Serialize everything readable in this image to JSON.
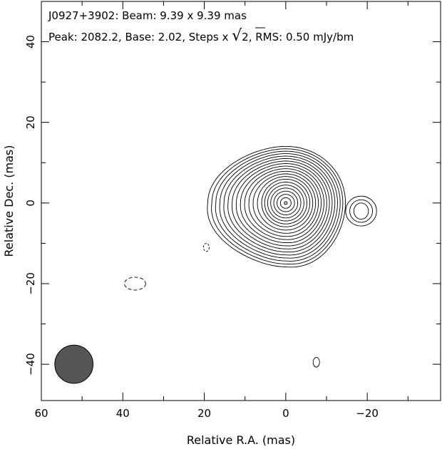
{
  "chart_data": {
    "type": "contour",
    "title_line1": "J0927+3902: Beam: 9.39 x 9.39 mas",
    "title_line2_prefix": "Peak: 2082.2, Base: 2.02, Steps x ",
    "title_line2_sqrt": "2",
    "title_line2_suffix": ", RMS: 0.50 mJy/bm",
    "xlabel": "Relative R.A. (mas)",
    "ylabel": "Relative Dec. (mas)",
    "xlim": [
      60,
      -38
    ],
    "ylim": [
      -49,
      50
    ],
    "x_ticks": [
      60,
      40,
      20,
      0,
      -20
    ],
    "y_ticks": [
      -40,
      -20,
      0,
      20,
      40
    ],
    "x_minor_step": 10,
    "y_minor_step": 10,
    "peak": 2082.2,
    "base": 2.02,
    "step_factor": "sqrt(2)",
    "rms": 0.5,
    "source": {
      "x": 0,
      "y": 0
    },
    "contour_levels_count": 21,
    "east_extension": {
      "x": -18.5,
      "y": -2
    },
    "beam": {
      "x": 52,
      "y": -40,
      "major": 9.39,
      "minor": 9.39
    },
    "features": [
      {
        "kind": "negative-contour",
        "x": 37,
        "y": -20
      },
      {
        "kind": "negative-contour",
        "x": 19.5,
        "y": -11
      },
      {
        "kind": "positive-contour",
        "x": -7.5,
        "y": -39.5
      }
    ]
  }
}
